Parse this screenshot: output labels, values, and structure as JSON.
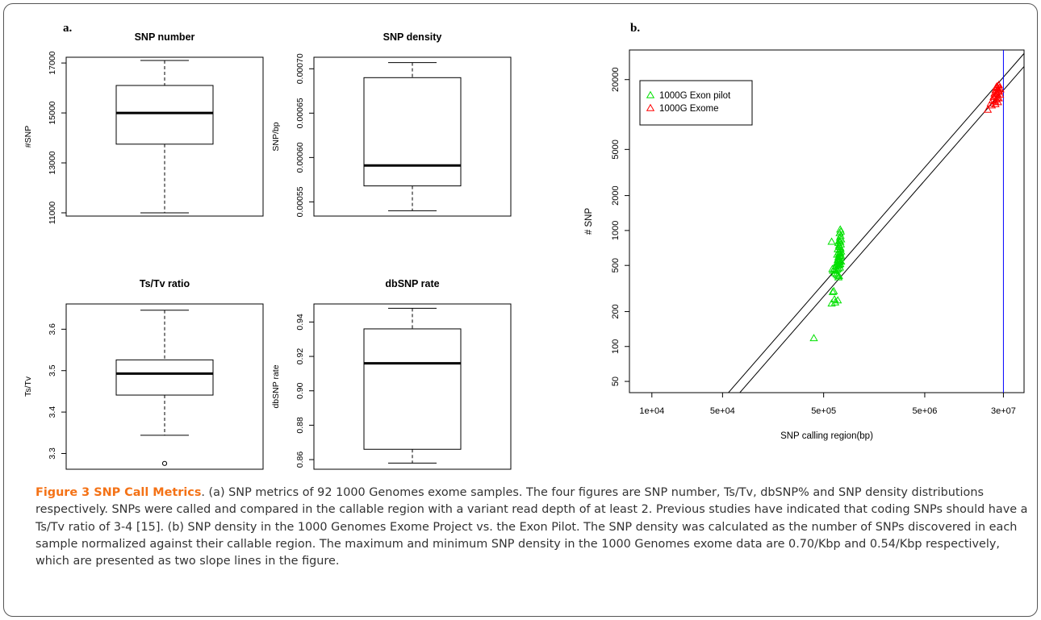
{
  "panels": {
    "a_label": "a.",
    "b_label": "b."
  },
  "chart_data": [
    {
      "type": "box",
      "title": "SNP number",
      "ylabel": "#SNP",
      "yticks": [
        11000,
        13000,
        15000,
        17000
      ],
      "ylim": [
        10870,
        17230
      ],
      "box": {
        "whisker_low": 11000,
        "q1": 13750,
        "median": 15000,
        "q3": 16100,
        "whisker_high": 17100,
        "outliers": []
      }
    },
    {
      "type": "box",
      "title": "SNP density",
      "ylabel": "SNP/bp",
      "yticks": [
        0.00055,
        0.0006,
        0.00065,
        0.0007
      ],
      "ytick_labels": [
        "0.00055",
        "0.00060",
        "0.00065",
        "0.00070"
      ],
      "ylim": [
        0.000534,
        0.000713
      ],
      "box": {
        "whisker_low": 0.00054,
        "q1": 0.000568,
        "median": 0.000591,
        "q3": 0.00069,
        "whisker_high": 0.000707,
        "outliers": []
      }
    },
    {
      "type": "box",
      "title": "Ts/Tv ratio",
      "ylabel": "Ts/Tv",
      "yticks": [
        3.3,
        3.4,
        3.5,
        3.6
      ],
      "ylim": [
        3.262,
        3.661
      ],
      "box": {
        "whisker_low": 3.344,
        "q1": 3.441,
        "median": 3.493,
        "q3": 3.526,
        "whisker_high": 3.646,
        "outliers": [
          3.276
        ]
      }
    },
    {
      "type": "box",
      "title": "dbSNP rate",
      "ylabel": "dbSNP rate",
      "yticks": [
        0.86,
        0.88,
        0.9,
        0.92,
        0.94
      ],
      "ytick_labels": [
        "0.86",
        "0.88",
        "0.90",
        "0.92",
        "0.94"
      ],
      "ylim": [
        0.8544,
        0.9505
      ],
      "box": {
        "whisker_low": 0.858,
        "q1": 0.866,
        "median": 0.916,
        "q3": 0.936,
        "whisker_high": 0.948,
        "outliers": []
      }
    },
    {
      "type": "scatter",
      "xlabel": "SNP calling region(bp)",
      "ylabel": "# SNP",
      "xscale": "log",
      "yscale": "log",
      "xlim": [
        6000,
        48000000
      ],
      "ylim": [
        40,
        36000
      ],
      "xticks": [
        10000,
        50000,
        500000,
        5000000,
        30000000
      ],
      "xtick_labels": [
        "1e+04",
        "5e+04",
        "5e+05",
        "5e+06",
        "3e+07"
      ],
      "yticks": [
        50,
        100,
        200,
        500,
        1000,
        2000,
        5000,
        20000
      ],
      "legend_position": "top-left",
      "slope_lines": [
        0.0007,
        0.00054
      ],
      "vertical_line_x": 30000000,
      "series": [
        {
          "name": "1000G Exon pilot",
          "color": "#00e000",
          "marker": "triangle",
          "points": [
            [
              730000,
              1020
            ],
            [
              740000,
              980
            ],
            [
              720000,
              950
            ],
            [
              735000,
              900
            ],
            [
              725000,
              870
            ],
            [
              745000,
              840
            ],
            [
              715000,
              820
            ],
            [
              730000,
              800
            ],
            [
              700000,
              780
            ],
            [
              740000,
              760
            ],
            [
              710000,
              740
            ],
            [
              725000,
              720
            ],
            [
              735000,
              700
            ],
            [
              690000,
              690
            ],
            [
              720000,
              680
            ],
            [
              745000,
              660
            ],
            [
              705000,
              650
            ],
            [
              730000,
              640
            ],
            [
              715000,
              630
            ],
            [
              680000,
              620
            ],
            [
              740000,
              610
            ],
            [
              725000,
              600
            ],
            [
              700000,
              590
            ],
            [
              735000,
              580
            ],
            [
              710000,
              570
            ],
            [
              690000,
              560
            ],
            [
              720000,
              550
            ],
            [
              745000,
              540
            ],
            [
              705000,
              530
            ],
            [
              670000,
              520
            ],
            [
              730000,
              515
            ],
            [
              715000,
              505
            ],
            [
              695000,
              500
            ],
            [
              660000,
              490
            ],
            [
              725000,
              480
            ],
            [
              700000,
              470
            ],
            [
              680000,
              460
            ],
            [
              650000,
              455
            ],
            [
              620000,
              450
            ],
            [
              640000,
              470
            ],
            [
              610000,
              465
            ],
            [
              600000,
              800
            ],
            [
              670000,
              420
            ],
            [
              690000,
              410
            ],
            [
              710000,
              405
            ],
            [
              650000,
              430
            ],
            [
              700000,
              395
            ],
            [
              630000,
              300
            ],
            [
              615000,
              295
            ],
            [
              640000,
              255
            ],
            [
              600000,
              235
            ],
            [
              650000,
              240
            ],
            [
              690000,
              250
            ],
            [
              400000,
              118
            ]
          ]
        },
        {
          "name": "1000G Exome",
          "color": "#ff0000",
          "marker": "triangle",
          "points": [
            [
              27000000,
              18000
            ],
            [
              26000000,
              17500
            ],
            [
              25500000,
              17200
            ],
            [
              27500000,
              17000
            ],
            [
              26500000,
              16800
            ],
            [
              28000000,
              16500
            ],
            [
              25000000,
              16300
            ],
            [
              26800000,
              16000
            ],
            [
              27200000,
              15800
            ],
            [
              25800000,
              15500
            ],
            [
              24500000,
              15200
            ],
            [
              26200000,
              15000
            ],
            [
              27800000,
              14800
            ],
            [
              25200000,
              14500
            ],
            [
              24000000,
              14200
            ],
            [
              26000000,
              14000
            ],
            [
              27000000,
              13800
            ],
            [
              25500000,
              13500
            ],
            [
              23500000,
              13300
            ],
            [
              24800000,
              13000
            ],
            [
              26500000,
              12800
            ],
            [
              22500000,
              12500
            ],
            [
              25000000,
              12300
            ],
            [
              23000000,
              12000
            ],
            [
              21000000,
              11000
            ]
          ]
        }
      ]
    }
  ],
  "caption": {
    "title": "Figure 3 SNP Call Metrics",
    "text": ". (a) SNP metrics of 92 1000 Genomes exome samples. The four figures are SNP number, Ts/Tv, dbSNP% and SNP density distributions respectively. SNPs were called and compared in the callable region with a variant read depth of at least 2. Previous studies have indicated that coding SNPs should have a Ts/Tv ratio of 3-4 [15]. (b) SNP density in the 1000 Genomes Exome Project vs. the Exon Pilot. The SNP density was calculated as the number of SNPs discovered in each sample normalized against their callable region. The maximum and minimum SNP density in the 1000 Genomes exome data are 0.70/Kbp and 0.54/Kbp respectively, which are presented as two slope lines in the figure."
  }
}
